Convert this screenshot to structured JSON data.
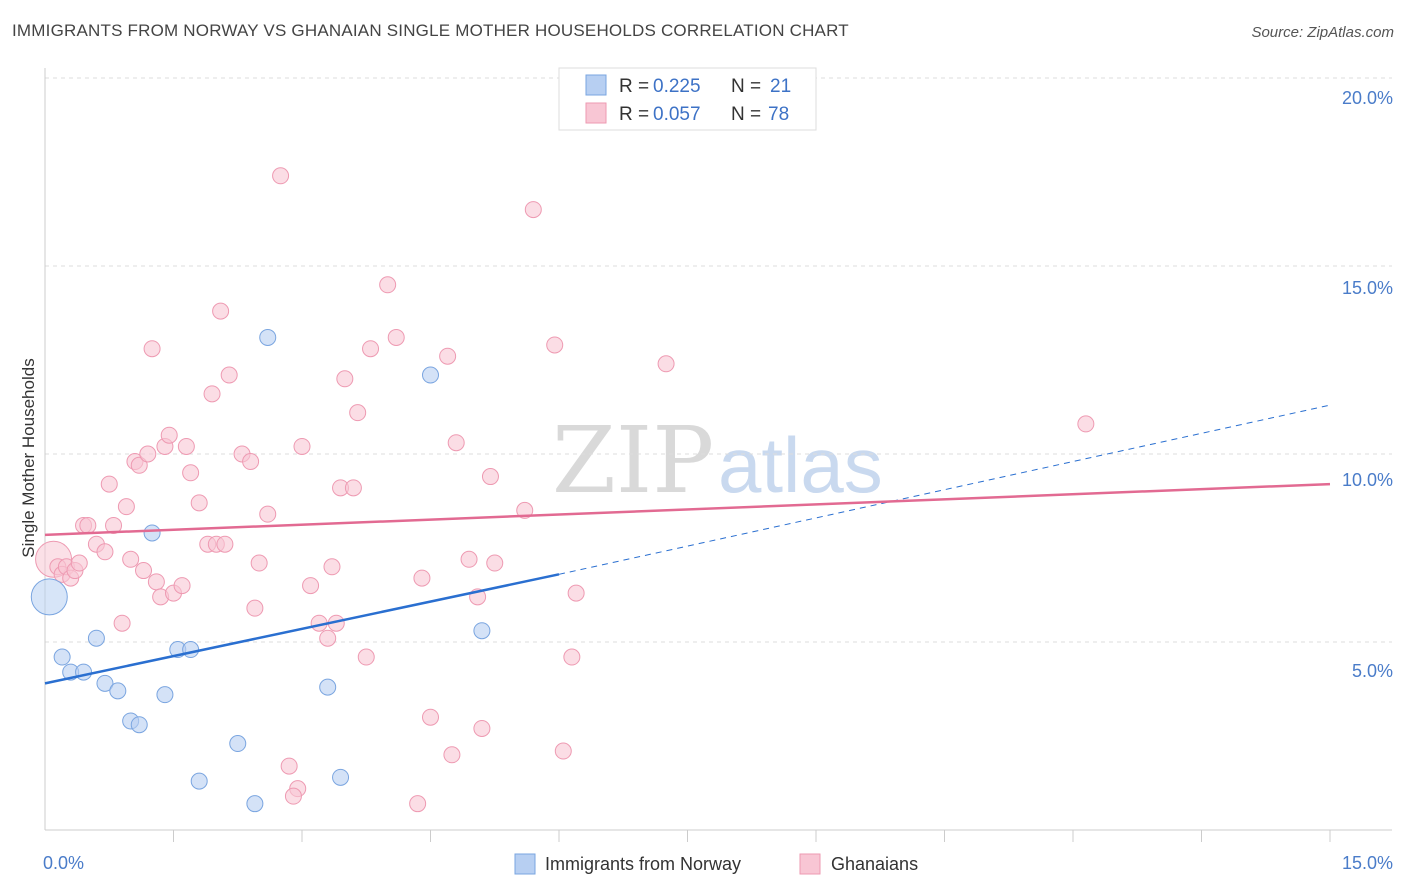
{
  "title": "IMMIGRANTS FROM NORWAY VS GHANAIAN SINGLE MOTHER HOUSEHOLDS CORRELATION CHART",
  "source": "Source: ZipAtlas.com",
  "colors": {
    "blue_fill": "#b7cff2",
    "blue_stroke": "#7aa5e0",
    "blue_line": "#2a6fd0",
    "pink_fill": "#f8c6d4",
    "pink_stroke": "#ee9ab2",
    "pink_line": "#e26a92",
    "grid": "#dddddd",
    "tick": "#4a7cc9"
  },
  "legend": {
    "r_label": "R =",
    "n_label": "N =",
    "series": [
      {
        "r": "0.225",
        "n": "21"
      },
      {
        "r": "0.057",
        "n": "78"
      }
    ]
  },
  "watermark": {
    "zip": "ZIP",
    "atlas": "atlas"
  },
  "chart_data": {
    "type": "scatter",
    "title": "IMMIGRANTS FROM NORWAY VS GHANAIAN SINGLE MOTHER HOUSEHOLDS CORRELATION CHART",
    "xlabel": "",
    "ylabel": "Single Mother Households",
    "xlim": [
      0,
      15
    ],
    "ylim": [
      0,
      20
    ],
    "x_tick_labels": [
      "0.0%",
      "15.0%"
    ],
    "y_ticks": [
      5,
      10,
      15,
      20
    ],
    "y_tick_labels": [
      "5.0%",
      "10.0%",
      "15.0%",
      "20.0%"
    ],
    "grid": true,
    "legend_position": "top-center",
    "series": [
      {
        "name": "Immigrants from Norway",
        "color": "#7aa5e0",
        "trend": {
          "x0": 0,
          "y0": 3.9,
          "x1": 6,
          "y1": 6.8,
          "dash_to": 15,
          "dash_y": 11.3
        },
        "points": [
          [
            0.05,
            6.2,
            "big"
          ],
          [
            0.2,
            4.6
          ],
          [
            0.3,
            4.2
          ],
          [
            0.45,
            4.2
          ],
          [
            0.6,
            5.1
          ],
          [
            0.7,
            3.9
          ],
          [
            0.85,
            3.7
          ],
          [
            1.0,
            2.9
          ],
          [
            1.1,
            2.8
          ],
          [
            1.25,
            7.9
          ],
          [
            1.4,
            3.6
          ],
          [
            1.55,
            4.8
          ],
          [
            1.7,
            4.8
          ],
          [
            1.8,
            1.3
          ],
          [
            2.25,
            2.3
          ],
          [
            2.45,
            0.7
          ],
          [
            2.6,
            13.1
          ],
          [
            3.3,
            3.8
          ],
          [
            3.45,
            1.4
          ],
          [
            4.5,
            12.1
          ],
          [
            5.1,
            5.3
          ]
        ]
      },
      {
        "name": "Ghanaians",
        "color": "#ee9ab2",
        "trend": {
          "x0": 0,
          "y0": 7.85,
          "x1": 15,
          "y1": 9.2
        },
        "points": [
          [
            0.1,
            7.2,
            "big"
          ],
          [
            0.15,
            7.0
          ],
          [
            0.2,
            6.8
          ],
          [
            0.25,
            7.0
          ],
          [
            0.3,
            6.7
          ],
          [
            0.35,
            6.9
          ],
          [
            0.4,
            7.1
          ],
          [
            0.45,
            8.1
          ],
          [
            0.5,
            8.1
          ],
          [
            0.6,
            7.6
          ],
          [
            0.7,
            7.4
          ],
          [
            0.75,
            9.2
          ],
          [
            0.8,
            8.1
          ],
          [
            0.9,
            5.5
          ],
          [
            0.95,
            8.6
          ],
          [
            1.0,
            7.2
          ],
          [
            1.05,
            9.8
          ],
          [
            1.1,
            9.7
          ],
          [
            1.15,
            6.9
          ],
          [
            1.2,
            10.0
          ],
          [
            1.25,
            12.8
          ],
          [
            1.3,
            6.6
          ],
          [
            1.35,
            6.2
          ],
          [
            1.4,
            10.2
          ],
          [
            1.45,
            10.5
          ],
          [
            1.5,
            6.3
          ],
          [
            1.6,
            6.5
          ],
          [
            1.65,
            10.2
          ],
          [
            1.7,
            9.5
          ],
          [
            1.8,
            8.7
          ],
          [
            1.9,
            7.6
          ],
          [
            1.95,
            11.6
          ],
          [
            2.0,
            7.6
          ],
          [
            2.05,
            13.8
          ],
          [
            2.1,
            7.6
          ],
          [
            2.15,
            12.1
          ],
          [
            2.3,
            10.0
          ],
          [
            2.4,
            9.8
          ],
          [
            2.45,
            5.9
          ],
          [
            2.5,
            7.1
          ],
          [
            2.6,
            8.4
          ],
          [
            2.75,
            17.4
          ],
          [
            2.85,
            1.7
          ],
          [
            2.95,
            1.1
          ],
          [
            2.9,
            0.9
          ],
          [
            3.0,
            10.2
          ],
          [
            3.1,
            6.5
          ],
          [
            3.2,
            5.5
          ],
          [
            3.3,
            5.1
          ],
          [
            3.35,
            7.0
          ],
          [
            3.4,
            5.5
          ],
          [
            3.45,
            9.1
          ],
          [
            3.5,
            12.0
          ],
          [
            3.6,
            9.1
          ],
          [
            3.65,
            11.1
          ],
          [
            3.75,
            4.6
          ],
          [
            3.8,
            12.8
          ],
          [
            4.0,
            14.5
          ],
          [
            4.1,
            13.1
          ],
          [
            4.35,
            0.7
          ],
          [
            4.4,
            6.7
          ],
          [
            4.5,
            3.0
          ],
          [
            4.7,
            12.6
          ],
          [
            4.75,
            2.0
          ],
          [
            4.8,
            10.3
          ],
          [
            4.95,
            7.2
          ],
          [
            5.05,
            6.2
          ],
          [
            5.1,
            2.7
          ],
          [
            5.2,
            9.4
          ],
          [
            5.25,
            7.1
          ],
          [
            5.6,
            8.5
          ],
          [
            5.7,
            16.5
          ],
          [
            5.95,
            12.9
          ],
          [
            6.05,
            2.1
          ],
          [
            6.15,
            4.6
          ],
          [
            6.2,
            6.3
          ],
          [
            7.25,
            12.4
          ],
          [
            12.15,
            10.8
          ]
        ]
      }
    ]
  },
  "bottom_legend": {
    "items": [
      "Immigrants from Norway",
      "Ghanaians"
    ]
  }
}
